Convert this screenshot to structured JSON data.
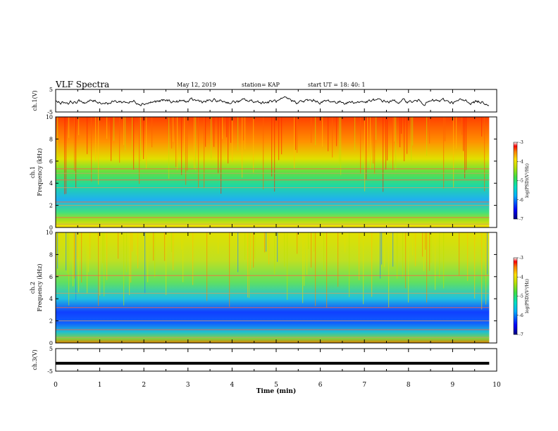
{
  "header": {
    "title": "VLF Spectra",
    "date": "May 12, 2019",
    "station": "station= KAP",
    "start_ut": "start  UT  =   18: 40: 1"
  },
  "colors": {
    "colormap": [
      "#000080",
      "#0000ff",
      "#00a0ff",
      "#00e0e0",
      "#20e080",
      "#60e040",
      "#c0e000",
      "#ffe000",
      "#ff9000",
      "#ff2000",
      "#ffffff"
    ]
  },
  "chart_data": [
    {
      "type": "line",
      "panel": "ch1-waveform",
      "ylabel": "ch.1(V)",
      "ylim": [
        -5,
        5
      ],
      "yticks": [
        "5",
        "-5"
      ],
      "xlim": [
        0,
        10
      ],
      "description_values": {
        "mean": -0.4,
        "amplitude": 1.2
      },
      "series": [
        {
          "values": [
            -0.4,
            -0.1,
            -0.8,
            0.3,
            -0.6,
            -1.0,
            0.2,
            -0.5,
            -0.2,
            -0.9,
            0.1,
            -0.4,
            -0.7,
            0.4,
            -0.3,
            -1.1,
            -0.2,
            -0.6,
            0.2,
            -0.8
          ]
        }
      ]
    },
    {
      "type": "heatmap",
      "panel": "ch1-spectrogram",
      "ylabel": "ch.1 Frequency (kHz)",
      "xlim": [
        0,
        10
      ],
      "ylim": [
        0,
        10
      ],
      "yticks": [
        "0",
        "2",
        "4",
        "6",
        "8",
        "10"
      ],
      "colorbar": {
        "label": "log(PSD)(V²/Hz)",
        "ticks": [
          "-3",
          "-4",
          "-5",
          "-6",
          "-7"
        ],
        "range": [
          -7,
          -3
        ]
      },
      "data_end_min": 9.83,
      "bands_khz": [
        0.3,
        0.9,
        2.0,
        2.3,
        3.6,
        4.3,
        4.9,
        5.3
      ]
    },
    {
      "type": "heatmap",
      "panel": "ch2-spectrogram",
      "ylabel": "ch.2 Frequency (kHz)",
      "xlim": [
        0,
        10
      ],
      "ylim": [
        0,
        10
      ],
      "yticks": [
        "0",
        "2",
        "4",
        "6",
        "8",
        "10"
      ],
      "colorbar": {
        "label": "log(PSD)(V²/Hz)",
        "ticks": [
          "-3",
          "-4",
          "-5",
          "-6",
          "-7"
        ],
        "range": [
          -7,
          -3
        ]
      },
      "data_end_min": 9.83,
      "bands_khz": [
        0.5,
        1.2,
        2.0,
        3.2,
        4.5,
        6.1
      ]
    },
    {
      "type": "line",
      "panel": "ch3-waveform",
      "ylabel": "ch.3(V)",
      "ylim": [
        -5,
        5
      ],
      "yticks": [
        "5",
        "-5"
      ],
      "xlim": [
        0,
        10
      ],
      "series": [
        {
          "values": [
            -1.5,
            -1.5
          ]
        }
      ]
    }
  ],
  "xaxis": {
    "label": "Time  (min)",
    "ticks": [
      "0",
      "1",
      "2",
      "3",
      "4",
      "5",
      "6",
      "7",
      "8",
      "9",
      "10"
    ]
  }
}
